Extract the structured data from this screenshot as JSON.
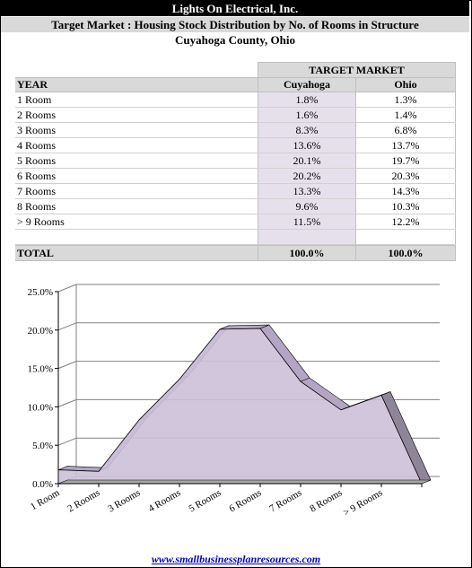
{
  "header": {
    "company": "Lights On Electrical, Inc.",
    "subtitle": "Target Market : Housing Stock Distribution by No. of Rooms in Structure",
    "location": "Cuyahoga County,  Ohio"
  },
  "table": {
    "group_header": "TARGET MARKET",
    "col_year": "YEAR",
    "col_cuyahoga": "Cuyahoga",
    "col_ohio": "Ohio",
    "rows": [
      {
        "label": "1 Room",
        "cuyahoga": "1.8%",
        "ohio": "1.3%"
      },
      {
        "label": "2 Rooms",
        "cuyahoga": "1.6%",
        "ohio": "1.4%"
      },
      {
        "label": "3 Rooms",
        "cuyahoga": "8.3%",
        "ohio": "6.8%"
      },
      {
        "label": "4 Rooms",
        "cuyahoga": "13.6%",
        "ohio": "13.7%"
      },
      {
        "label": "5 Rooms",
        "cuyahoga": "20.1%",
        "ohio": "19.7%"
      },
      {
        "label": "6 Rooms",
        "cuyahoga": "20.2%",
        "ohio": "20.3%"
      },
      {
        "label": "7 Rooms",
        "cuyahoga": "13.3%",
        "ohio": "14.3%"
      },
      {
        "label": "8 Rooms",
        "cuyahoga": "9.6%",
        "ohio": "10.3%"
      },
      {
        "label": "> 9 Rooms",
        "cuyahoga": "11.5%",
        "ohio": "12.2%"
      }
    ],
    "total_label": "TOTAL",
    "total_cuyahoga": "100.0%",
    "total_ohio": "100.0%"
  },
  "chart_data": {
    "type": "area",
    "categories": [
      "1 Room",
      "2 Rooms",
      "3 Rooms",
      "4 Rooms",
      "5 Rooms",
      "6 Rooms",
      "7 Rooms",
      "8 Rooms",
      "> 9 Rooms"
    ],
    "series": [
      {
        "values": [
          1.8,
          1.6,
          8.3,
          13.6,
          20.1,
          20.2,
          13.3,
          9.6,
          11.5
        ]
      }
    ],
    "ylim": [
      0,
      25
    ],
    "yticks": [
      "0.0%",
      "5.0%",
      "10.0%",
      "15.0%",
      "20.0%",
      "25.0%"
    ],
    "grid": true,
    "legend": "none",
    "color": "#cdc0d9",
    "edge_color": "#b3a5c3"
  },
  "footer": {
    "link": "www.smallbusinessplanresources.com"
  }
}
